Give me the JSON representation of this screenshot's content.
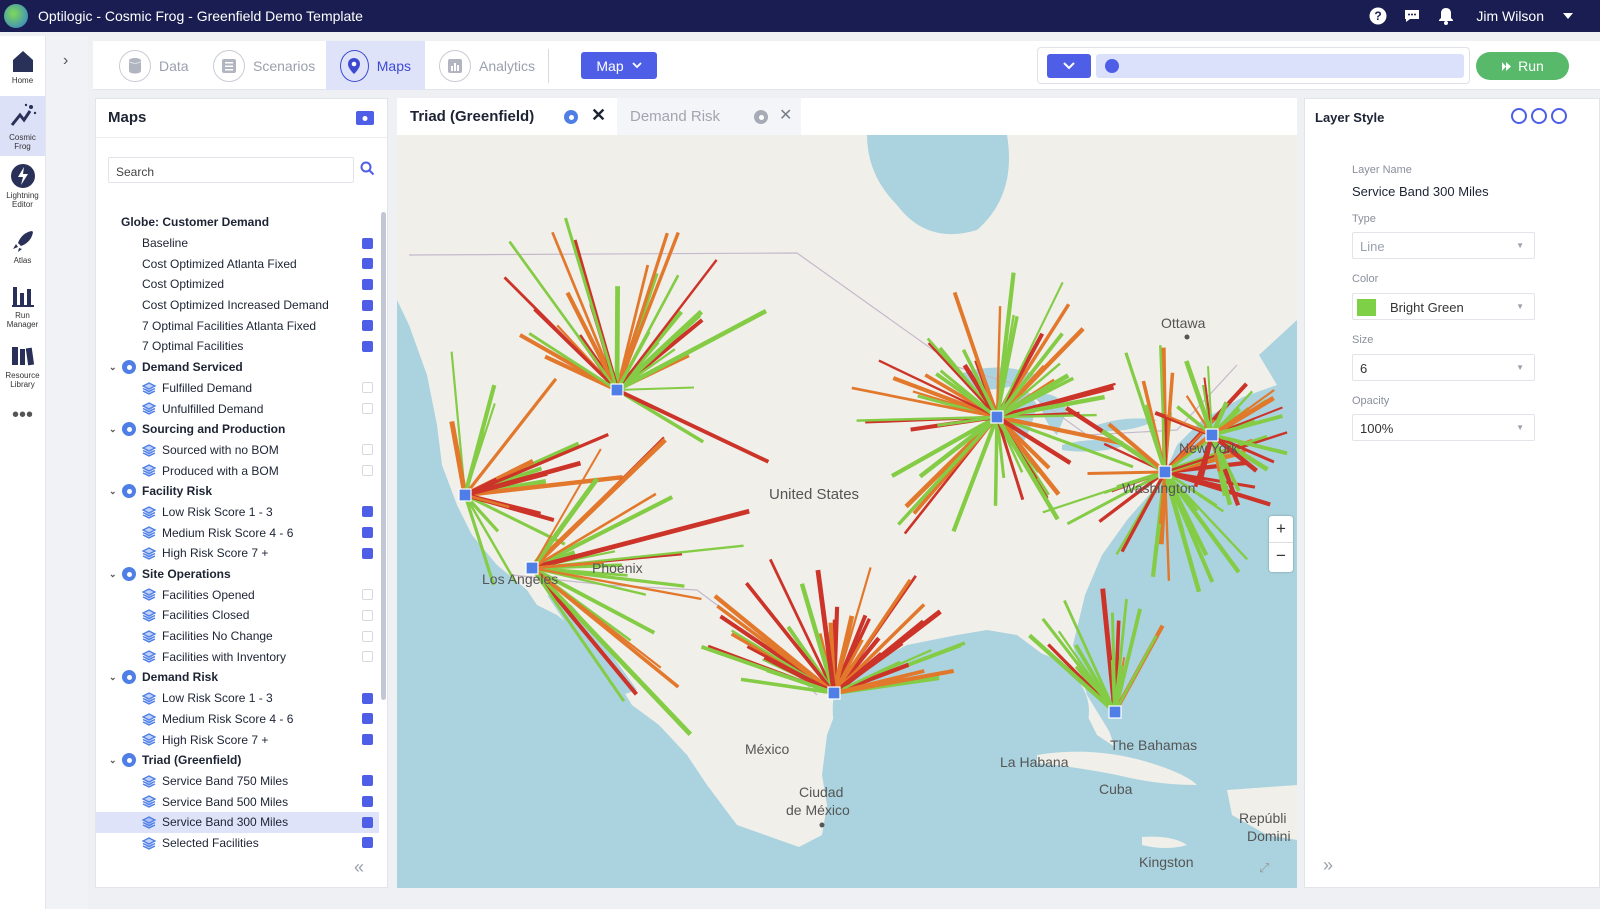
{
  "window": {
    "title": "Optilogic - Cosmic Frog - Greenfield Demo Template",
    "user": "Jim Wilson"
  },
  "topbar_icons": [
    "help-icon",
    "chat-icon",
    "bell-icon",
    "chevron-down-icon"
  ],
  "nav": [
    {
      "label": "Home",
      "icon": "home-icon"
    },
    {
      "label": "Cosmic Frog",
      "icon": "cosmic-frog-icon",
      "active": true
    },
    {
      "label": "Lightning Editor",
      "icon": "lightning-icon"
    },
    {
      "label": "Atlas",
      "icon": "rocket-icon"
    },
    {
      "label": "Run Manager",
      "icon": "bar-chart-icon"
    },
    {
      "label": "Resource Library",
      "icon": "library-icon"
    }
  ],
  "nav_more": "•••",
  "toolbar": {
    "tabs": [
      {
        "label": "Data",
        "icon": "database-icon"
      },
      {
        "label": "Scenarios",
        "icon": "list-icon"
      },
      {
        "label": "Maps",
        "icon": "map-pin-icon",
        "active": true
      },
      {
        "label": "Analytics",
        "icon": "analytics-icon"
      }
    ],
    "map_dropdown": "Map",
    "run_label": "Run"
  },
  "maps_panel": {
    "title": "Maps",
    "search_placeholder": "Search",
    "tree": [
      {
        "label": "Globe: Customer Demand",
        "kind": "root"
      },
      {
        "label": "Baseline",
        "kind": "item",
        "checked": true
      },
      {
        "label": "Cost Optimized Atlanta Fixed",
        "kind": "item",
        "checked": true
      },
      {
        "label": "Cost Optimized",
        "kind": "item",
        "checked": true
      },
      {
        "label": "Cost Optimized Increased Demand",
        "kind": "item",
        "checked": true
      },
      {
        "label": "7 Optimal Facilities Atlanta Fixed",
        "kind": "item",
        "checked": true
      },
      {
        "label": "7 Optimal Facilities",
        "kind": "item",
        "checked": true
      },
      {
        "label": "Demand Serviced",
        "kind": "group"
      },
      {
        "label": "Fulfilled Demand",
        "kind": "layer",
        "checked": false
      },
      {
        "label": "Unfulfilled Demand",
        "kind": "layer",
        "checked": false
      },
      {
        "label": "Sourcing and Production",
        "kind": "group"
      },
      {
        "label": "Sourced with no BOM",
        "kind": "layer",
        "checked": false
      },
      {
        "label": "Produced with a BOM",
        "kind": "layer",
        "checked": false
      },
      {
        "label": "Facility Risk",
        "kind": "group"
      },
      {
        "label": "Low Risk Score 1 - 3",
        "kind": "layer",
        "checked": true
      },
      {
        "label": "Medium Risk Score 4 - 6",
        "kind": "layer",
        "checked": true
      },
      {
        "label": "High Risk Score 7 +",
        "kind": "layer",
        "checked": true
      },
      {
        "label": "Site Operations",
        "kind": "group"
      },
      {
        "label": "Facilities Opened",
        "kind": "layer",
        "checked": false
      },
      {
        "label": "Facilities Closed",
        "kind": "layer",
        "checked": false
      },
      {
        "label": "Facilities No Change",
        "kind": "layer",
        "checked": false
      },
      {
        "label": "Facilities with Inventory",
        "kind": "layer",
        "checked": false
      },
      {
        "label": "Demand Risk",
        "kind": "group"
      },
      {
        "label": "Low Risk Score 1 - 3",
        "kind": "layer",
        "checked": true
      },
      {
        "label": "Medium Risk Score 4 - 6",
        "kind": "layer",
        "checked": true
      },
      {
        "label": "High Risk Score 7 +",
        "kind": "layer",
        "checked": true
      },
      {
        "label": "Triad (Greenfield)",
        "kind": "group"
      },
      {
        "label": "Service Band 750 Miles",
        "kind": "layer",
        "checked": true
      },
      {
        "label": "Service Band 500 Miles",
        "kind": "layer",
        "checked": true
      },
      {
        "label": "Service Band 300 Miles",
        "kind": "layer",
        "checked": true,
        "selected": true
      },
      {
        "label": "Selected Facilities",
        "kind": "layer",
        "checked": true
      }
    ],
    "collapse_glyph": "«"
  },
  "map": {
    "tabs": [
      {
        "label": "Triad (Greenfield)",
        "active": true
      },
      {
        "label": "Demand Risk",
        "active": false
      }
    ],
    "labels": {
      "ottawa": "Ottawa",
      "united_states": "United States",
      "new_york": "New York",
      "washington": "Washington",
      "phoenix": "Phoenix",
      "los_angeles": "Los Angeles",
      "mexico": "México",
      "ciudad": "Ciudad",
      "de_mexico": "de México",
      "la_habana": "La Habana",
      "cuba": "Cuba",
      "bahamas": "The Bahamas",
      "kingston": "Kingston",
      "republica": "Repúbli",
      "dominicana": "Domini"
    },
    "zoom_in": "+",
    "zoom_out": "−",
    "colors": {
      "land": "#f1efe9",
      "water": "#aad3df",
      "green": "#84cc45",
      "orange": "#e2782c",
      "red": "#cc3329",
      "facility": "#4f7fe6"
    }
  },
  "layer_style": {
    "title": "Layer Style",
    "layer_name_label": "Layer Name",
    "layer_name": "Service Band 300 Miles",
    "type_label": "Type",
    "type_value": "Line",
    "color_label": "Color",
    "color_value": "Bright Green",
    "color_hex": "#7ed146",
    "size_label": "Size",
    "size_value": "6",
    "opacity_label": "Opacity",
    "opacity_value": "100%",
    "collapse_glyph": "»"
  }
}
